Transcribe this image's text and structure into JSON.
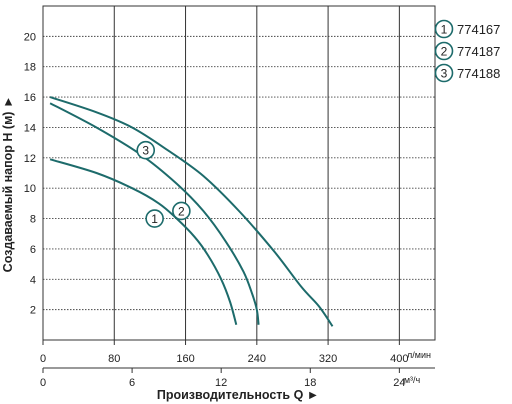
{
  "chart_data": {
    "type": "line",
    "xlabel": "Производительность Q ►",
    "ylabel": "Создаваемый напор H (м) ►",
    "x_unit": "л/мин",
    "x2_unit": "м³/ч",
    "xlim": [
      0,
      440
    ],
    "ylim": [
      0,
      22
    ],
    "x_ticks": [
      0,
      80,
      160,
      240,
      320,
      400
    ],
    "x_tick_labels": [
      "0",
      "80",
      "160",
      "240",
      "320",
      "400"
    ],
    "x2_ticks": [
      0,
      6,
      12,
      18,
      24
    ],
    "x2_tick_labels": [
      "0",
      "6",
      "12",
      "18",
      "24"
    ],
    "y_ticks": [
      2,
      4,
      6,
      8,
      10,
      12,
      14,
      16,
      18,
      20
    ],
    "y_tick_labels": [
      "2",
      "4",
      "6",
      "8",
      "10",
      "12",
      "14",
      "16",
      "18",
      "20"
    ],
    "grid": true,
    "series": [
      {
        "name": "774167",
        "marker": "1",
        "color": "#1d6b6b",
        "x": [
          8,
          60,
          100,
          130,
          150,
          170,
          185,
          200,
          210,
          217
        ],
        "y": [
          11.9,
          11.0,
          10.0,
          9.0,
          8.0,
          6.8,
          5.6,
          4.0,
          2.5,
          1.0
        ]
      },
      {
        "name": "774187",
        "marker": "2",
        "color": "#1d6b6b",
        "x": [
          8,
          60,
          110,
          150,
          180,
          205,
          225,
          235,
          240,
          242
        ],
        "y": [
          15.6,
          14.0,
          12.2,
          10.3,
          8.5,
          6.5,
          4.5,
          3.0,
          2.0,
          1.0
        ]
      },
      {
        "name": "774188",
        "marker": "3",
        "color": "#1d6b6b",
        "x": [
          8,
          60,
          100,
          140,
          180,
          220,
          260,
          290,
          310,
          325
        ],
        "y": [
          16.0,
          15.0,
          14.0,
          12.5,
          10.8,
          8.5,
          5.8,
          3.5,
          2.2,
          0.9
        ]
      }
    ],
    "legend": {
      "placement": "top-right"
    }
  }
}
